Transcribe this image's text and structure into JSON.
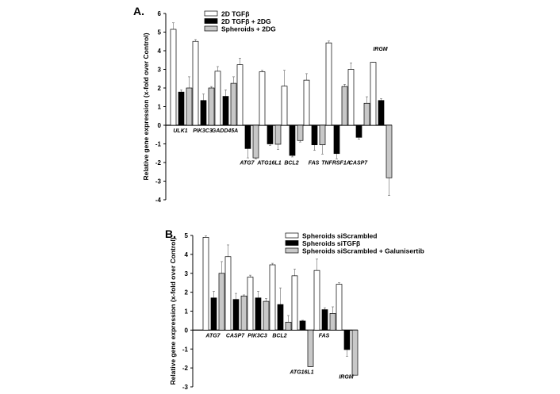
{
  "chart_data": [
    {
      "type": "bar",
      "panel_label": "A.",
      "ylabel": "Relative gene expression (x-fold over Control)",
      "ylim": [
        -4,
        6
      ],
      "yticks": [
        "-4",
        "-3",
        "-2",
        "-1",
        "0",
        "1",
        "2",
        "3",
        "4",
        "5",
        "6"
      ],
      "categories": [
        "ULK1",
        "PIK3C3",
        "GADD45A",
        "ATG7",
        "ATG16L1",
        "BCL2",
        "FAS",
        "TNFRSF1A",
        "CASP7",
        "IRGM"
      ],
      "legend_position": "top",
      "series": [
        {
          "name": "2D TGFβ",
          "color": "#ffffff",
          "values": [
            5.15,
            4.5,
            2.9,
            3.25,
            2.87,
            2.1,
            2.42,
            4.42,
            3.0,
            3.38
          ],
          "errors": [
            0.35,
            0.1,
            0.25,
            0.35,
            0.08,
            0.85,
            0.35,
            0.1,
            0.35,
            0.0
          ]
        },
        {
          "name": "2D TGFβ + 2DG",
          "color": "#000000",
          "values": [
            1.78,
            1.33,
            1.55,
            -1.25,
            -1.0,
            -1.62,
            -1.05,
            -1.52,
            -0.65,
            1.33
          ],
          "errors": [
            0.12,
            0.35,
            0.35,
            0.5,
            0.08,
            0.08,
            0.3,
            0.28,
            0.1,
            0.1
          ]
        },
        {
          "name": "Spheroids + 2DG",
          "color": "#c8c8c8",
          "values": [
            2.0,
            2.0,
            2.25,
            -1.75,
            -1.02,
            -0.82,
            -1.05,
            2.08,
            1.18,
            -2.82
          ],
          "errors": [
            0.6,
            0.08,
            0.35,
            0.05,
            0.28,
            0.08,
            0.5,
            0.12,
            0.35,
            0.95
          ]
        }
      ]
    },
    {
      "type": "bar",
      "panel_label": "B.",
      "ylabel": "Relative gene expression (x-fold over Control)",
      "ylim": [
        -3,
        5
      ],
      "yticks": [
        "-3",
        "-2",
        "-1",
        "0",
        "1",
        "2",
        "3",
        "4",
        "5"
      ],
      "categories": [
        "ATG7",
        "CASP7",
        "PIK3C3",
        "BCL2",
        "ATG16L1",
        "FAS",
        "IRGM"
      ],
      "legend_position": "top-right",
      "series": [
        {
          "name": "Spheroids siScrambled",
          "color": "#ffffff",
          "values": [
            4.9,
            3.88,
            2.8,
            3.45,
            2.87,
            3.15,
            2.42
          ],
          "errors": [
            0.08,
            0.62,
            0.1,
            0.08,
            0.35,
            0.6,
            0.08
          ]
        },
        {
          "name": "Spheroids siTGFβ",
          "color": "#000000",
          "values": [
            1.7,
            1.62,
            1.7,
            1.35,
            0.48,
            1.08,
            -1.03
          ],
          "errors": [
            0.35,
            0.32,
            0.35,
            0.88,
            0.04,
            0.1,
            0.35
          ]
        },
        {
          "name": "Spheroids siScrambled + Galunisertib",
          "color": "#c8c8c8",
          "values": [
            3.0,
            1.8,
            1.52,
            0.42,
            -1.93,
            0.88,
            -2.38
          ],
          "errors": [
            0.62,
            0.06,
            0.15,
            0.35,
            0.0,
            0.35,
            0.0
          ]
        }
      ]
    }
  ]
}
